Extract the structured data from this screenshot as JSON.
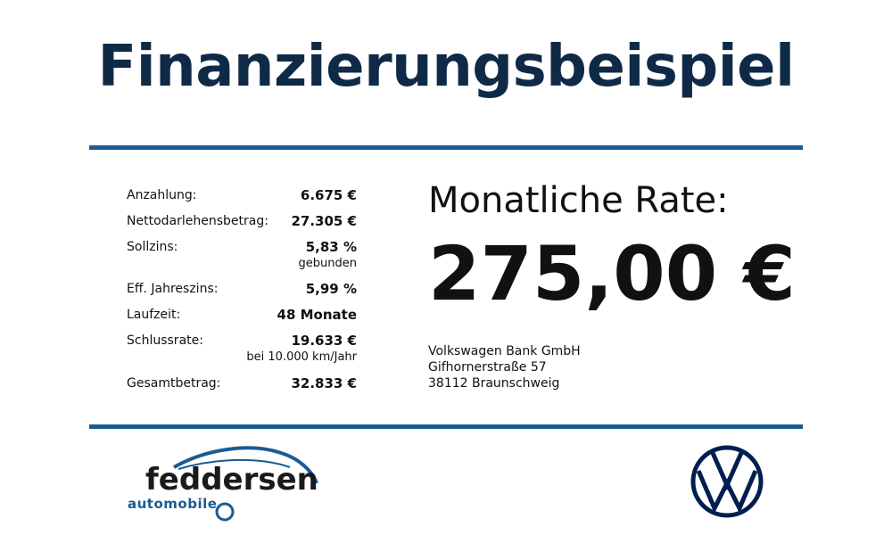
{
  "title": "Finanzierungsbeispiel",
  "terms": [
    {
      "label": "Anzahlung:",
      "value": "6.675 €"
    },
    {
      "label": "Nettodarlehensbetrag:",
      "value": "27.305 €"
    },
    {
      "label": "Sollzins:",
      "value": "5,83 %",
      "note": "gebunden"
    },
    {
      "label": "Eff. Jahreszins:",
      "value": "5,99 %"
    },
    {
      "label": "Laufzeit:",
      "value": "48 Monate"
    },
    {
      "label": "Schlussrate:",
      "value": "19.633 €",
      "note": "bei 10.000 km/Jahr"
    },
    {
      "label": "Gesamtbetrag:",
      "value": "32.833 €"
    }
  ],
  "rate": {
    "label": "Monatliche Rate:",
    "value": "275,00 €"
  },
  "bank": [
    "Volkswagen Bank GmbH",
    "Gifhornerstraße 57",
    "38112 Braunschweig"
  ],
  "dealer": {
    "name": "feddersen",
    "tagline": "automobile"
  }
}
